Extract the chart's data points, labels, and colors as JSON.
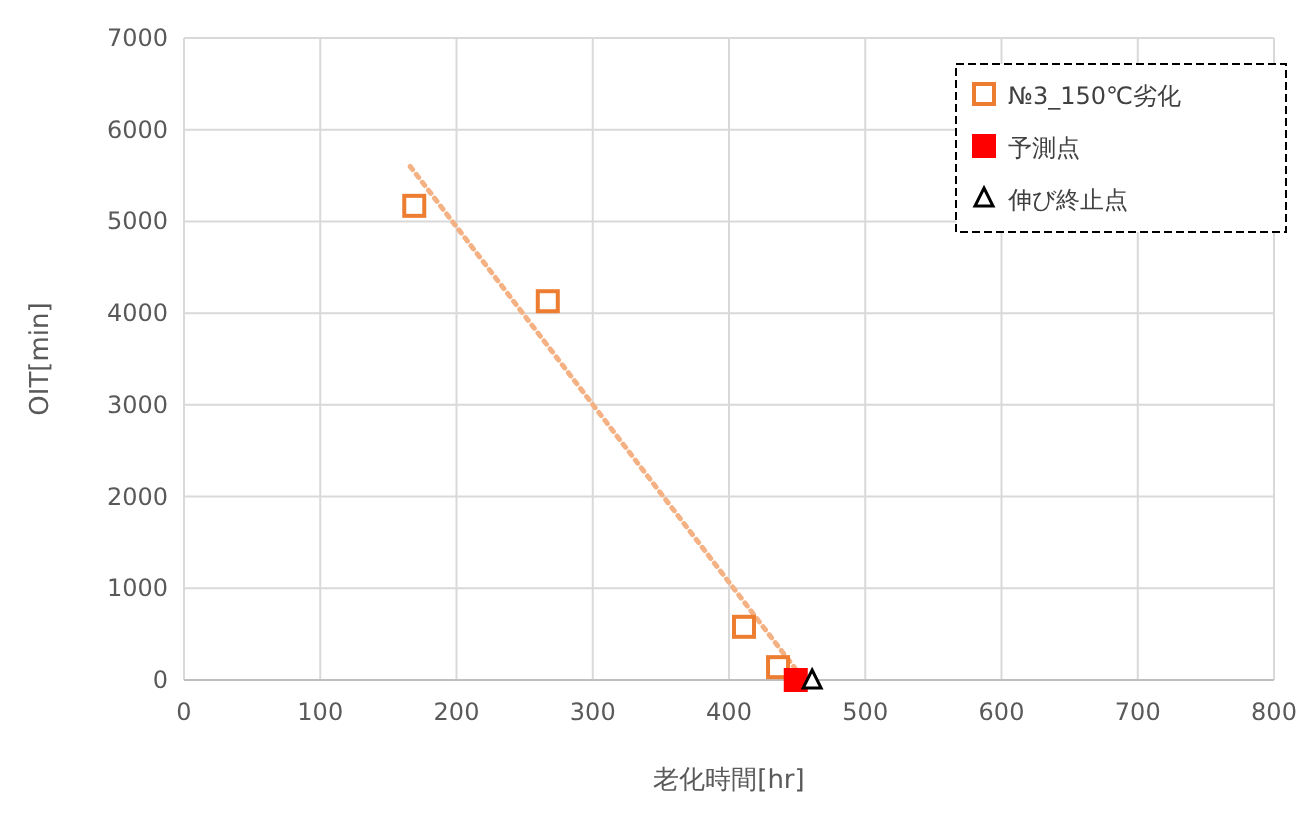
{
  "chart_data": {
    "type": "scatter",
    "xlabel": "老化時間[hr]",
    "ylabel": "OIT[min]",
    "xlim": [
      0,
      800
    ],
    "ylim": [
      0,
      7000
    ],
    "xticks": [
      0,
      100,
      200,
      300,
      400,
      500,
      600,
      700,
      800
    ],
    "yticks": [
      0,
      1000,
      2000,
      3000,
      4000,
      5000,
      6000,
      7000
    ],
    "grid": true,
    "legend": "top right",
    "series": [
      {
        "name": "№3_150℃劣化",
        "color": "#ed7d31",
        "marker": "square",
        "x": [
          169,
          267,
          411,
          436
        ],
        "values": [
          5170,
          4130,
          580,
          140
        ]
      },
      {
        "name": "予測点",
        "color": "#ff0000",
        "marker": "square",
        "x": [
          449
        ],
        "values": [
          0
        ]
      },
      {
        "name": "伸び終止点",
        "color": "#000000",
        "marker": "triangle",
        "x": [
          461
        ],
        "values": [
          0
        ]
      },
      {
        "type": "line",
        "color": "#f4b183",
        "line_style": "dotted",
        "x": [
          166,
          455
        ],
        "values": [
          5600,
          0
        ]
      }
    ]
  }
}
